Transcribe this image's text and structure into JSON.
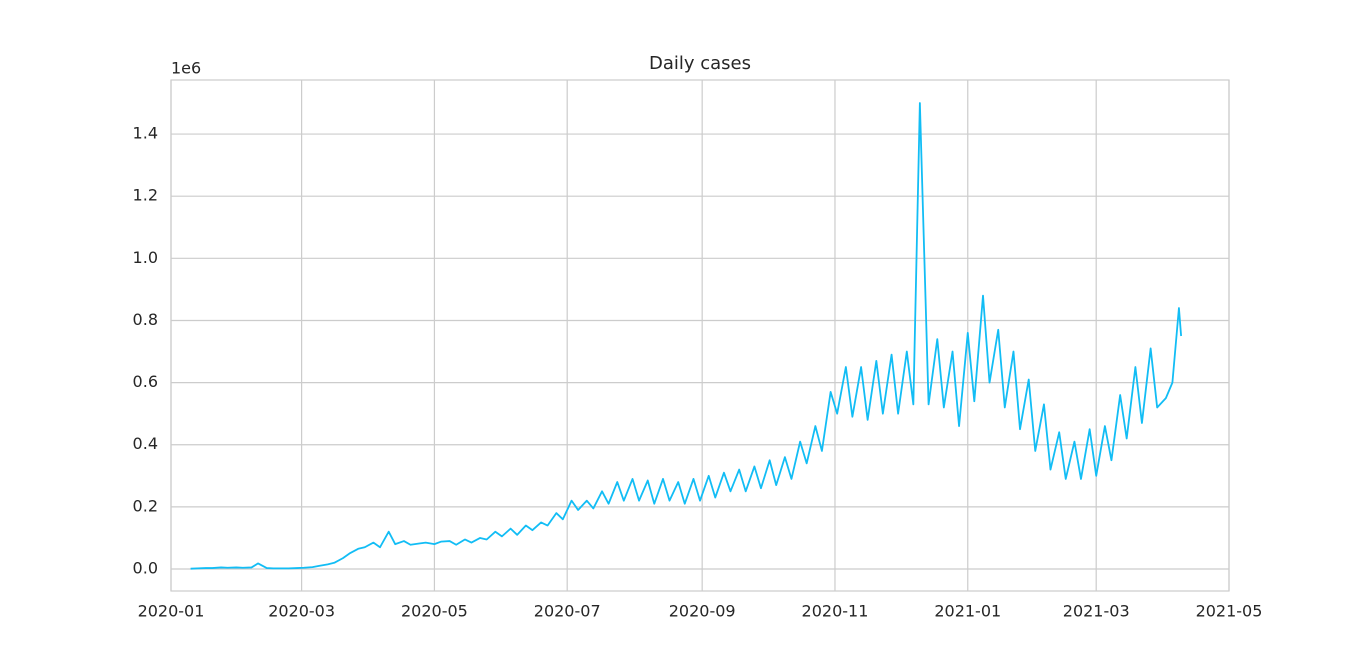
{
  "chart_data": {
    "type": "line",
    "title": "Daily cases",
    "y_offset_label": "1e6",
    "x": [
      18271,
      18274,
      18278,
      18281,
      18285,
      18288,
      18292,
      18295,
      18299,
      18302,
      18306,
      18309,
      18313,
      18316,
      18320,
      18323,
      18327,
      18330,
      18334,
      18337,
      18341,
      18344,
      18348,
      18351,
      18355,
      18358,
      18362,
      18365,
      18369,
      18372,
      18376,
      18379,
      18383,
      18386,
      18390,
      18393,
      18397,
      18400,
      18404,
      18407,
      18411,
      18414,
      18418,
      18421,
      18425,
      18428,
      18432,
      18435,
      18439,
      18442,
      18446,
      18449,
      18453,
      18456,
      18460,
      18463,
      18467,
      18470,
      18474,
      18477,
      18481,
      18484,
      18488,
      18491,
      18495,
      18498,
      18502,
      18505,
      18509,
      18512,
      18516,
      18519,
      18523,
      18526,
      18530,
      18533,
      18537,
      18540,
      18544,
      18547,
      18551,
      18554,
      18558,
      18561,
      18565,
      18568,
      18572,
      18575,
      18579,
      18582,
      18586,
      18589,
      18593,
      18596,
      18600,
      18603,
      18606,
      18610,
      18614,
      18617,
      18621,
      18624,
      18628,
      18631,
      18635,
      18638,
      18642,
      18645,
      18649,
      18652,
      18656,
      18659,
      18663,
      18666,
      18670,
      18673,
      18677,
      18680,
      18684,
      18687,
      18691,
      18694,
      18698,
      18701,
      18705,
      18708,
      18712,
      18715,
      18719,
      18722,
      18725,
      18726
    ],
    "values": [
      0.001,
      0.002,
      0.003,
      0.003,
      0.005,
      0.004,
      0.005,
      0.004,
      0.005,
      0.018,
      0.003,
      0.002,
      0.002,
      0.002,
      0.003,
      0.004,
      0.006,
      0.01,
      0.015,
      0.02,
      0.035,
      0.05,
      0.065,
      0.07,
      0.085,
      0.07,
      0.12,
      0.08,
      0.09,
      0.078,
      0.082,
      0.085,
      0.08,
      0.088,
      0.09,
      0.078,
      0.095,
      0.085,
      0.1,
      0.095,
      0.12,
      0.105,
      0.13,
      0.11,
      0.14,
      0.125,
      0.15,
      0.14,
      0.18,
      0.16,
      0.22,
      0.19,
      0.22,
      0.195,
      0.25,
      0.21,
      0.28,
      0.22,
      0.29,
      0.22,
      0.285,
      0.21,
      0.29,
      0.22,
      0.28,
      0.21,
      0.29,
      0.22,
      0.3,
      0.23,
      0.31,
      0.25,
      0.32,
      0.25,
      0.33,
      0.26,
      0.35,
      0.27,
      0.36,
      0.29,
      0.41,
      0.34,
      0.46,
      0.38,
      0.57,
      0.5,
      0.65,
      0.49,
      0.65,
      0.48,
      0.67,
      0.5,
      0.69,
      0.5,
      0.7,
      0.53,
      1.5,
      0.53,
      0.74,
      0.52,
      0.7,
      0.46,
      0.76,
      0.54,
      0.88,
      0.6,
      0.77,
      0.52,
      0.7,
      0.45,
      0.61,
      0.38,
      0.53,
      0.32,
      0.44,
      0.29,
      0.41,
      0.29,
      0.45,
      0.3,
      0.46,
      0.35,
      0.56,
      0.42,
      0.65,
      0.47,
      0.71,
      0.52,
      0.55,
      0.6,
      0.84,
      0.75
    ],
    "color": "#12bdf5",
    "xlim": [
      18262,
      18748
    ],
    "xticks": [
      {
        "value": 18262,
        "label": "2020-01"
      },
      {
        "value": 18322,
        "label": "2020-03"
      },
      {
        "value": 18383,
        "label": "2020-05"
      },
      {
        "value": 18444,
        "label": "2020-07"
      },
      {
        "value": 18506,
        "label": "2020-09"
      },
      {
        "value": 18567,
        "label": "2020-11"
      },
      {
        "value": 18628,
        "label": "2021-01"
      },
      {
        "value": 18687,
        "label": "2021-03"
      },
      {
        "value": 18748,
        "label": "2021-05"
      }
    ],
    "ylim": [
      -0.0708,
      1.574
    ],
    "yticks": [
      {
        "value": 0,
        "label": "0.0"
      },
      0.2,
      0.4,
      0.6,
      0.8,
      {
        "value": 1,
        "label": "1.0"
      },
      1.2,
      1.4
    ],
    "grid": true
  }
}
